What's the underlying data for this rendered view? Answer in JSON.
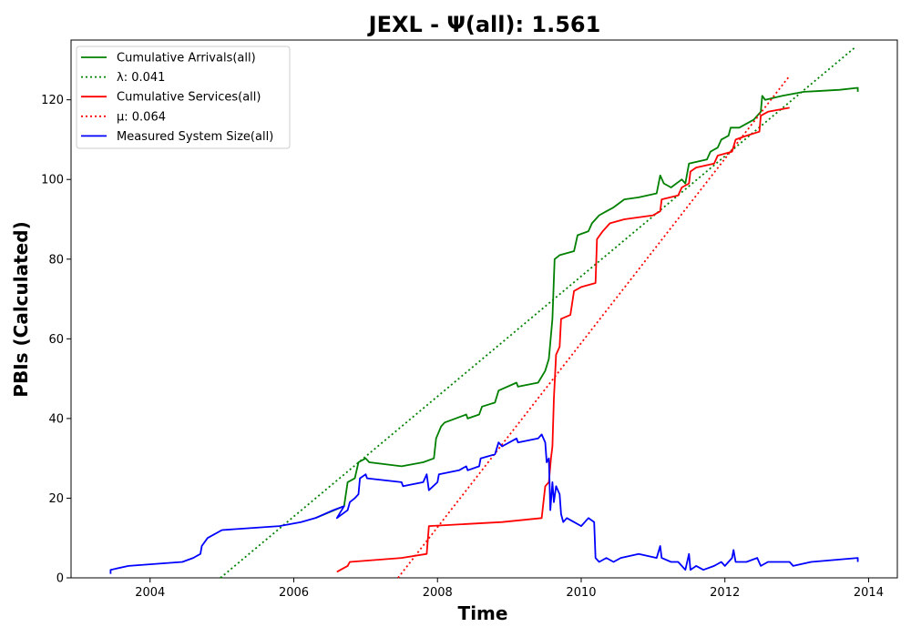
{
  "chart_data": {
    "type": "line",
    "title": "JEXL -  Ψ(all): 1.561",
    "xlabel": "Time",
    "ylabel": "PBIs (Calculated)",
    "xlim": [
      2002.9,
      2014.4
    ],
    "ylim": [
      0,
      135
    ],
    "x_ticks": [
      2004,
      2006,
      2008,
      2010,
      2012,
      2014
    ],
    "y_ticks": [
      0,
      20,
      40,
      60,
      80,
      100,
      120
    ],
    "legend_position": "upper left",
    "grid": false,
    "series": [
      {
        "name": "Cumulative Arrivals(all)",
        "style": "solid",
        "color": "#008000",
        "points": [
          [
            2006.3,
            15
          ],
          [
            2006.7,
            18
          ],
          [
            2006.75,
            24
          ],
          [
            2006.85,
            25
          ],
          [
            2006.9,
            29
          ],
          [
            2007.0,
            30
          ],
          [
            2007.05,
            29
          ],
          [
            2007.5,
            28
          ],
          [
            2007.8,
            29
          ],
          [
            2007.95,
            30
          ],
          [
            2007.98,
            35
          ],
          [
            2008.05,
            38
          ],
          [
            2008.1,
            39
          ],
          [
            2008.4,
            41
          ],
          [
            2008.42,
            40
          ],
          [
            2008.58,
            41
          ],
          [
            2008.62,
            43
          ],
          [
            2008.8,
            44
          ],
          [
            2008.85,
            47
          ],
          [
            2009.1,
            49
          ],
          [
            2009.12,
            48
          ],
          [
            2009.4,
            49
          ],
          [
            2009.5,
            52
          ],
          [
            2009.55,
            55
          ],
          [
            2009.6,
            65
          ],
          [
            2009.63,
            80
          ],
          [
            2009.7,
            81
          ],
          [
            2009.9,
            82
          ],
          [
            2009.95,
            86
          ],
          [
            2010.1,
            87
          ],
          [
            2010.15,
            89
          ],
          [
            2010.25,
            91
          ],
          [
            2010.35,
            92
          ],
          [
            2010.45,
            93
          ],
          [
            2010.6,
            95
          ],
          [
            2010.8,
            95.5
          ],
          [
            2011.05,
            96.5
          ],
          [
            2011.1,
            101
          ],
          [
            2011.15,
            99
          ],
          [
            2011.25,
            98
          ],
          [
            2011.4,
            100
          ],
          [
            2011.45,
            99
          ],
          [
            2011.5,
            104
          ],
          [
            2011.75,
            105
          ],
          [
            2011.8,
            107
          ],
          [
            2011.9,
            108
          ],
          [
            2011.95,
            110
          ],
          [
            2012.05,
            111
          ],
          [
            2012.08,
            113
          ],
          [
            2012.2,
            113
          ],
          [
            2012.4,
            115
          ],
          [
            2012.5,
            117
          ],
          [
            2012.52,
            121
          ],
          [
            2012.56,
            120
          ],
          [
            2012.8,
            121
          ],
          [
            2013.1,
            122
          ],
          [
            2013.6,
            122.5
          ],
          [
            2013.85,
            123
          ],
          [
            2013.85,
            122
          ]
        ]
      },
      {
        "name": "λ: 0.041",
        "style": "dotted",
        "color": "#008000",
        "points": [
          [
            2004.98,
            0
          ],
          [
            2013.8,
            133
          ]
        ]
      },
      {
        "name": "Cumulative Services(all)",
        "style": "solid",
        "color": "#ff0000",
        "points": [
          [
            2006.6,
            1.5
          ],
          [
            2006.65,
            2
          ],
          [
            2006.75,
            3
          ],
          [
            2006.78,
            4
          ],
          [
            2007.5,
            5
          ],
          [
            2007.85,
            6
          ],
          [
            2007.88,
            13
          ],
          [
            2008.9,
            14
          ],
          [
            2009.45,
            15
          ],
          [
            2009.5,
            23
          ],
          [
            2009.55,
            24
          ],
          [
            2009.58,
            30
          ],
          [
            2009.6,
            33
          ],
          [
            2009.62,
            45
          ],
          [
            2009.65,
            56
          ],
          [
            2009.7,
            58
          ],
          [
            2009.72,
            65
          ],
          [
            2009.85,
            66
          ],
          [
            2009.9,
            72
          ],
          [
            2010.0,
            73
          ],
          [
            2010.2,
            74
          ],
          [
            2010.22,
            85
          ],
          [
            2010.3,
            87
          ],
          [
            2010.4,
            89
          ],
          [
            2010.6,
            90
          ],
          [
            2011.0,
            91
          ],
          [
            2011.1,
            92
          ],
          [
            2011.12,
            95
          ],
          [
            2011.35,
            96
          ],
          [
            2011.4,
            98
          ],
          [
            2011.5,
            99
          ],
          [
            2011.52,
            102
          ],
          [
            2011.6,
            103
          ],
          [
            2011.85,
            104
          ],
          [
            2011.9,
            106
          ],
          [
            2012.1,
            107
          ],
          [
            2012.15,
            110
          ],
          [
            2012.3,
            111
          ],
          [
            2012.48,
            112
          ],
          [
            2012.5,
            116
          ],
          [
            2012.6,
            117
          ],
          [
            2012.9,
            118
          ]
        ]
      },
      {
        "name": "μ: 0.064",
        "style": "dotted",
        "color": "#ff0000",
        "points": [
          [
            2007.45,
            0
          ],
          [
            2012.9,
            126
          ]
        ]
      },
      {
        "name": "Measured System Size(all)",
        "style": "solid",
        "color": "#0000ff",
        "points": [
          [
            2003.45,
            1
          ],
          [
            2003.45,
            2
          ],
          [
            2003.7,
            3
          ],
          [
            2004.45,
            4
          ],
          [
            2004.6,
            5
          ],
          [
            2004.7,
            6
          ],
          [
            2004.72,
            8
          ],
          [
            2004.8,
            10
          ],
          [
            2005.0,
            12
          ],
          [
            2005.8,
            13
          ],
          [
            2006.1,
            14
          ],
          [
            2006.3,
            15
          ],
          [
            2006.55,
            17
          ],
          [
            2006.7,
            18
          ],
          [
            2006.6,
            15
          ],
          [
            2006.75,
            17
          ],
          [
            2006.78,
            19
          ],
          [
            2006.85,
            20
          ],
          [
            2006.9,
            21
          ],
          [
            2006.92,
            25
          ],
          [
            2007.0,
            26
          ],
          [
            2007.02,
            25
          ],
          [
            2007.5,
            24
          ],
          [
            2007.52,
            23
          ],
          [
            2007.8,
            24
          ],
          [
            2007.85,
            26
          ],
          [
            2007.88,
            22
          ],
          [
            2008.0,
            24
          ],
          [
            2008.02,
            26
          ],
          [
            2008.3,
            27
          ],
          [
            2008.4,
            28
          ],
          [
            2008.42,
            27
          ],
          [
            2008.58,
            28
          ],
          [
            2008.6,
            30
          ],
          [
            2008.8,
            31
          ],
          [
            2008.85,
            34
          ],
          [
            2008.9,
            33
          ],
          [
            2009.1,
            35
          ],
          [
            2009.12,
            34
          ],
          [
            2009.4,
            35
          ],
          [
            2009.45,
            36
          ],
          [
            2009.5,
            34
          ],
          [
            2009.52,
            29
          ],
          [
            2009.55,
            30
          ],
          [
            2009.57,
            17
          ],
          [
            2009.6,
            24
          ],
          [
            2009.62,
            19
          ],
          [
            2009.65,
            23
          ],
          [
            2009.7,
            21
          ],
          [
            2009.72,
            16
          ],
          [
            2009.75,
            14
          ],
          [
            2009.8,
            15
          ],
          [
            2009.9,
            14
          ],
          [
            2010.0,
            13
          ],
          [
            2010.1,
            15
          ],
          [
            2010.18,
            14
          ],
          [
            2010.2,
            5
          ],
          [
            2010.25,
            4
          ],
          [
            2010.35,
            5
          ],
          [
            2010.45,
            4
          ],
          [
            2010.55,
            5
          ],
          [
            2010.8,
            6
          ],
          [
            2011.05,
            5
          ],
          [
            2011.1,
            8
          ],
          [
            2011.12,
            5
          ],
          [
            2011.25,
            4
          ],
          [
            2011.35,
            4
          ],
          [
            2011.4,
            3
          ],
          [
            2011.45,
            2
          ],
          [
            2011.5,
            6
          ],
          [
            2011.52,
            2
          ],
          [
            2011.6,
            3
          ],
          [
            2011.7,
            2
          ],
          [
            2011.85,
            3
          ],
          [
            2011.95,
            4
          ],
          [
            2012.0,
            3
          ],
          [
            2012.1,
            5
          ],
          [
            2012.12,
            7
          ],
          [
            2012.15,
            4
          ],
          [
            2012.3,
            4
          ],
          [
            2012.45,
            5
          ],
          [
            2012.5,
            3
          ],
          [
            2012.6,
            4
          ],
          [
            2012.9,
            4
          ],
          [
            2012.95,
            3
          ],
          [
            2013.2,
            4
          ],
          [
            2013.85,
            5
          ],
          [
            2013.85,
            4
          ]
        ]
      }
    ]
  }
}
